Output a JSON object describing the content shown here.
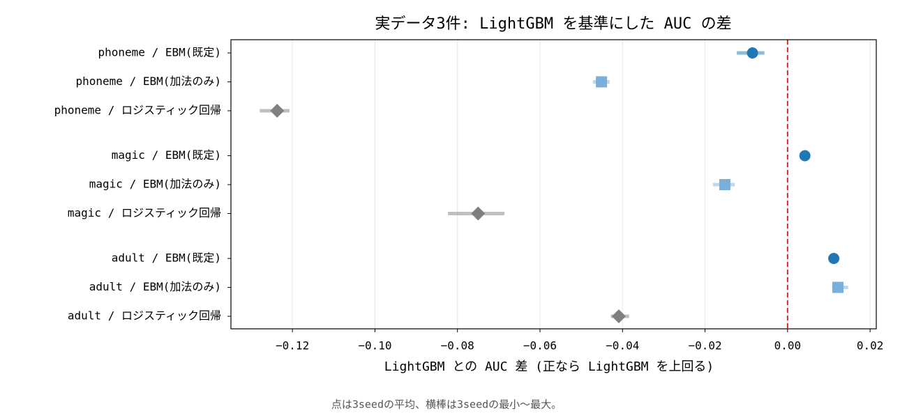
{
  "chart_data": {
    "type": "dot-range",
    "title": "実データ3件: LightGBM を基準にした AUC の差",
    "xlabel": "LightGBM との AUC 差 (正なら LightGBM を上回る)",
    "footnote": "点は3seedの平均、横棒は3seedの最小〜最大。",
    "categories": [
      "phoneme / EBM(既定)",
      "phoneme / EBM(加法のみ)",
      "phoneme / ロジスティック回帰",
      "magic / EBM(既定)",
      "magic / EBM(加法のみ)",
      "magic / ロジスティック回帰",
      "adult / EBM(既定)",
      "adult / EBM(加法のみ)",
      "adult / ロジスティック回帰"
    ],
    "values": [
      -0.0085,
      -0.0451,
      -0.1237,
      0.0042,
      -0.0152,
      -0.075,
      0.0112,
      0.0122,
      -0.0409
    ],
    "mins": [
      -0.0123,
      -0.0472,
      -0.1279,
      0.0035,
      -0.0181,
      -0.0823,
      0.0106,
      0.0108,
      -0.0428
    ],
    "maxs": [
      -0.0056,
      -0.0431,
      -0.1207,
      0.0049,
      -0.0128,
      -0.0686,
      0.0117,
      0.0147,
      -0.0384
    ],
    "colors": [
      "#1f77b4",
      "#7bafd9",
      "#808080",
      "#1f77b4",
      "#7bafd9",
      "#808080",
      "#1f77b4",
      "#7bafd9",
      "#808080"
    ],
    "markers": [
      "circle",
      "square",
      "diamond",
      "circle",
      "square",
      "diamond",
      "circle",
      "square",
      "diamond"
    ],
    "xlim": [
      -0.1349,
      0.0215
    ],
    "xticks": [
      {
        "value": -0.12,
        "label": "−0.12"
      },
      {
        "value": -0.1,
        "label": "−0.10"
      },
      {
        "value": -0.08,
        "label": "−0.08"
      },
      {
        "value": -0.06,
        "label": "−0.06"
      },
      {
        "value": -0.04,
        "label": "−0.04"
      },
      {
        "value": -0.02,
        "label": "−0.02"
      },
      {
        "value": 0,
        "label": "0.00"
      },
      {
        "value": 0.02,
        "label": "0.02"
      }
    ],
    "grid": true,
    "refline": {
      "value": 0,
      "color": "#d62728"
    }
  }
}
